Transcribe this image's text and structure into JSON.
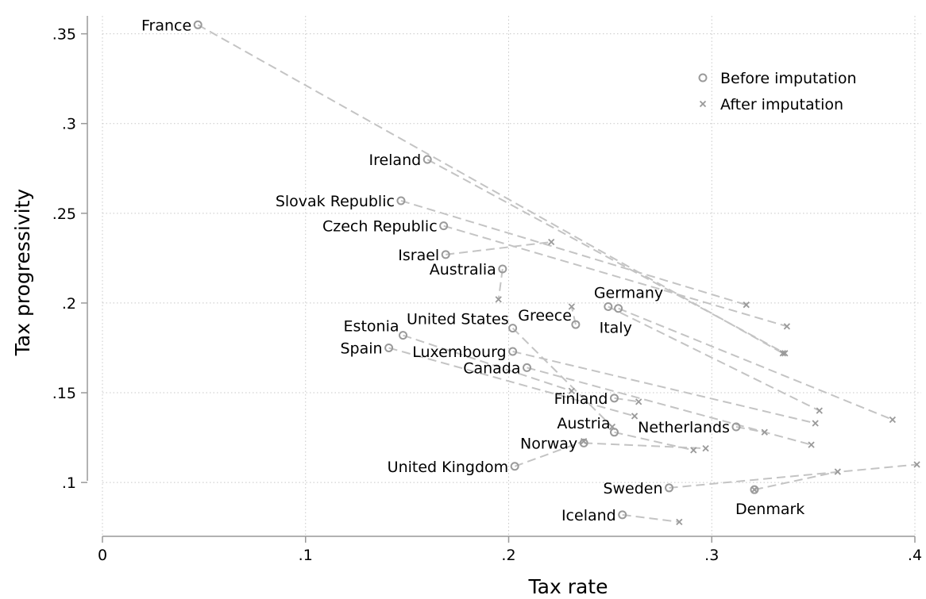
{
  "chart_data": {
    "type": "scatter",
    "title": "",
    "xlabel": "Tax rate",
    "ylabel": "Tax progressivity",
    "xlim": [
      0,
      0.4
    ],
    "ylim": [
      0.07,
      0.36
    ],
    "x_ticks": [
      0,
      0.1,
      0.2,
      0.3,
      0.4
    ],
    "x_tick_labels": [
      "0",
      ".1",
      ".2",
      ".3",
      ".4"
    ],
    "y_ticks": [
      0.1,
      0.15,
      0.2,
      0.25,
      0.3,
      0.35
    ],
    "y_tick_labels": [
      ".1",
      ".15",
      ".2",
      ".25",
      ".3",
      ".35"
    ],
    "grid": true,
    "legend_position": "top-right",
    "series": [
      {
        "name": "Before imputation",
        "marker": "hollow-circle",
        "color": "#9a9a9a"
      },
      {
        "name": "After imputation",
        "marker": "x",
        "color": "#9a9a9a"
      }
    ],
    "connector_color": "#c4c4c4",
    "countries": [
      {
        "name": "France",
        "before": [
          0.047,
          0.355
        ],
        "after": [
          0.335,
          0.172
        ],
        "label_side": "left"
      },
      {
        "name": "Ireland",
        "before": [
          0.16,
          0.28
        ],
        "after": [
          0.336,
          0.172
        ],
        "label_side": "left"
      },
      {
        "name": "Slovak Republic",
        "before": [
          0.147,
          0.257
        ],
        "after": [
          0.317,
          0.199
        ],
        "label_side": "left"
      },
      {
        "name": "Czech Republic",
        "before": [
          0.168,
          0.243
        ],
        "after": [
          0.337,
          0.187
        ],
        "label_side": "left"
      },
      {
        "name": "Israel",
        "before": [
          0.169,
          0.227
        ],
        "after": [
          0.221,
          0.234
        ],
        "label_side": "left"
      },
      {
        "name": "Australia",
        "before": [
          0.197,
          0.219
        ],
        "after": [
          0.195,
          0.202
        ],
        "label_side": "left"
      },
      {
        "name": "Germany",
        "before": [
          0.249,
          0.198
        ],
        "after": [
          0.353,
          0.14
        ],
        "label_side": "above"
      },
      {
        "name": "Italy",
        "before": [
          0.254,
          0.197
        ],
        "after": [
          0.389,
          0.135
        ],
        "label_side": "below"
      },
      {
        "name": "Greece",
        "before": [
          0.233,
          0.188
        ],
        "after": [
          0.231,
          0.198
        ],
        "label_side": "above-left"
      },
      {
        "name": "United States",
        "before": [
          0.202,
          0.186
        ],
        "after": [
          0.251,
          0.131
        ],
        "label_side": "above-left"
      },
      {
        "name": "Estonia",
        "before": [
          0.148,
          0.182
        ],
        "after": [
          0.231,
          0.151
        ],
        "label_side": "above-left"
      },
      {
        "name": "Spain",
        "before": [
          0.141,
          0.175
        ],
        "after": [
          0.262,
          0.137
        ],
        "label_side": "left"
      },
      {
        "name": "Luxembourg",
        "before": [
          0.202,
          0.173
        ],
        "after": [
          0.351,
          0.133
        ],
        "label_side": "left"
      },
      {
        "name": "Canada",
        "before": [
          0.209,
          0.164
        ],
        "after": [
          0.349,
          0.121
        ],
        "label_side": "left"
      },
      {
        "name": "Finland",
        "before": [
          0.252,
          0.147
        ],
        "after": [
          0.264,
          0.145
        ],
        "label_side": "left"
      },
      {
        "name": "Netherlands",
        "before": [
          0.312,
          0.131
        ],
        "after": [
          0.326,
          0.128
        ],
        "label_side": "left"
      },
      {
        "name": "Austria",
        "before": [
          0.252,
          0.128
        ],
        "after": [
          0.291,
          0.118
        ],
        "label_side": "above-left"
      },
      {
        "name": "Norway",
        "before": [
          0.237,
          0.122
        ],
        "after": [
          0.297,
          0.119
        ],
        "label_side": "left"
      },
      {
        "name": "United Kingdom",
        "before": [
          0.203,
          0.109
        ],
        "after": [
          0.237,
          0.123
        ],
        "label_side": "left"
      },
      {
        "name": "Sweden",
        "before": [
          0.279,
          0.097
        ],
        "after": [
          0.401,
          0.11
        ],
        "label_side": "left"
      },
      {
        "name": "Denmark",
        "before": [
          0.321,
          0.096
        ],
        "after": [
          0.362,
          0.106
        ],
        "label_side": "below",
        "before_also_x": true
      },
      {
        "name": "Iceland",
        "before": [
          0.256,
          0.082
        ],
        "after": [
          0.284,
          0.078
        ],
        "label_side": "left"
      }
    ]
  }
}
